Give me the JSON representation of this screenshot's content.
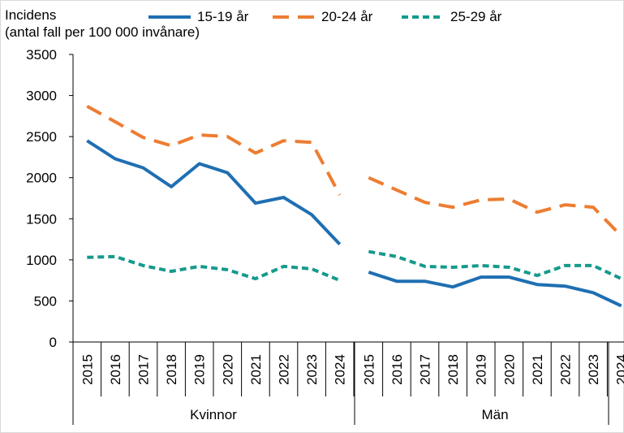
{
  "chart_data": {
    "type": "line",
    "ylabel": "Incidens\n(antal fall per 100 000 invånare)",
    "xlabel": "",
    "ylim": [
      0,
      3500
    ],
    "yticks": [
      0,
      500,
      1000,
      1500,
      2000,
      2500,
      3000,
      3500
    ],
    "grid": false,
    "legend_position": "top",
    "groups": [
      {
        "name": "Kvinnor",
        "categories": [
          "2015",
          "2016",
          "2017",
          "2018",
          "2019",
          "2020",
          "2021",
          "2022",
          "2023",
          "2024"
        ]
      },
      {
        "name": "Män",
        "categories": [
          "2015",
          "2016",
          "2017",
          "2018",
          "2019",
          "2020",
          "2021",
          "2022",
          "2023",
          "2024"
        ]
      }
    ],
    "series": [
      {
        "name": "15-19 år",
        "color": "#1f6fb2",
        "style": "solid",
        "values": {
          "Kvinnor": [
            2450,
            2230,
            2120,
            1890,
            2170,
            2060,
            1690,
            1760,
            1550,
            1190
          ],
          "Män": [
            850,
            740,
            740,
            670,
            790,
            790,
            700,
            680,
            600,
            440
          ]
        }
      },
      {
        "name": "20-24 år",
        "color": "#ed7d31",
        "style": "long-dash",
        "values": {
          "Kvinnor": [
            2870,
            2680,
            2490,
            2390,
            2520,
            2500,
            2300,
            2450,
            2430,
            1790
          ],
          "Män": [
            2000,
            1850,
            1700,
            1640,
            1730,
            1740,
            1580,
            1670,
            1640,
            1290
          ]
        }
      },
      {
        "name": "25-29 år",
        "color": "#159a8c",
        "style": "short-dash",
        "values": {
          "Kvinnor": [
            1030,
            1040,
            930,
            860,
            920,
            880,
            770,
            920,
            890,
            750
          ],
          "Män": [
            1100,
            1040,
            920,
            910,
            930,
            910,
            810,
            930,
            930,
            770
          ]
        }
      }
    ]
  }
}
